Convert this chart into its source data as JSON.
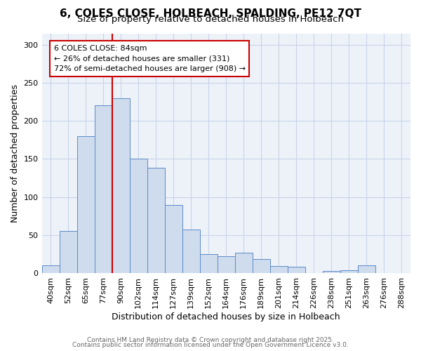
{
  "title_line1": "6, COLES CLOSE, HOLBEACH, SPALDING, PE12 7QT",
  "title_line2": "Size of property relative to detached houses in Holbeach",
  "xlabel": "Distribution of detached houses by size in Holbeach",
  "ylabel": "Number of detached properties",
  "bar_labels": [
    "40sqm",
    "52sqm",
    "65sqm",
    "77sqm",
    "90sqm",
    "102sqm",
    "114sqm",
    "127sqm",
    "139sqm",
    "152sqm",
    "164sqm",
    "176sqm",
    "189sqm",
    "201sqm",
    "214sqm",
    "226sqm",
    "238sqm",
    "251sqm",
    "263sqm",
    "276sqm",
    "288sqm"
  ],
  "bar_values": [
    10,
    55,
    180,
    220,
    230,
    150,
    138,
    89,
    57,
    25,
    22,
    27,
    18,
    9,
    8,
    0,
    3,
    4,
    10,
    0,
    0
  ],
  "bar_color": "#cfdcee",
  "bar_edge_color": "#5b8ac7",
  "grid_color": "#c8d4e8",
  "bg_color": "#edf2f9",
  "annotation_line1": "6 COLES CLOSE: 84sqm",
  "annotation_line2": "← 26% of detached houses are smaller (331)",
  "annotation_line3": "72% of semi-detached houses are larger (908) →",
  "ylim": [
    0,
    315
  ],
  "yticks": [
    0,
    50,
    100,
    150,
    200,
    250,
    300
  ],
  "red_line_x": 3.5,
  "footnote_line1": "Contains HM Land Registry data © Crown copyright and database right 2025.",
  "footnote_line2": "Contains public sector information licensed under the Open Government Licence v3.0.",
  "title_fontsize": 11,
  "subtitle_fontsize": 9.5,
  "axis_label_fontsize": 9,
  "tick_fontsize": 8,
  "annot_fontsize": 8,
  "footnote_fontsize": 6.5
}
